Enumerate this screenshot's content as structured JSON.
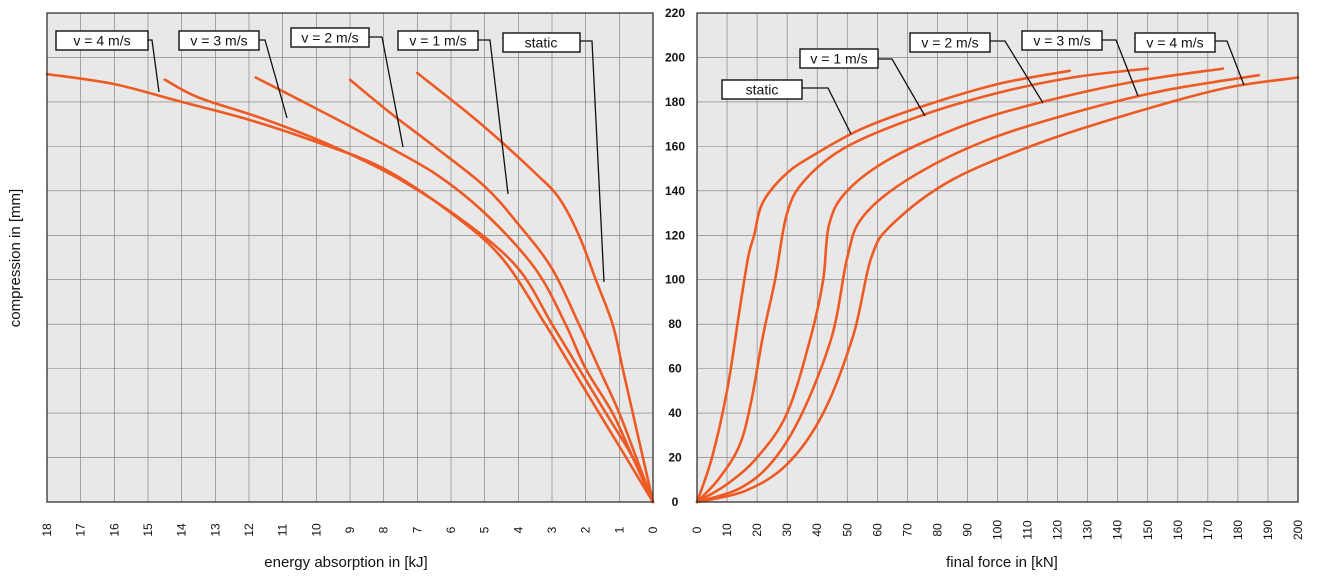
{
  "colors": {
    "curve": "#ee5a24",
    "plot_bg": "#e8e8e8",
    "grid": "#777777"
  },
  "y_axis": {
    "label": "compression in [mm]",
    "ticks": [
      "0",
      "20",
      "40",
      "60",
      "80",
      "100",
      "120",
      "140",
      "160",
      "180",
      "200",
      "220"
    ]
  },
  "chart_data": [
    {
      "type": "line",
      "title": "",
      "xlabel": "energy absorption in [kJ]",
      "ylabel": "compression in [mm]",
      "xlim": [
        18,
        0
      ],
      "ylim": [
        0,
        220
      ],
      "x_reversed": true,
      "grid": true,
      "xticks": [
        "18",
        "17",
        "16",
        "15",
        "14",
        "13",
        "12",
        "11",
        "10",
        "9",
        "8",
        "7",
        "6",
        "5",
        "4",
        "3",
        "2",
        "1",
        "0"
      ],
      "series": [
        {
          "name": "v = 4 m/s",
          "points": [
            [
              0,
              0
            ],
            [
              0.8,
              20
            ],
            [
              1.6,
              40
            ],
            [
              2.4,
              60
            ],
            [
              3.2,
              80
            ],
            [
              4.5,
              110
            ],
            [
              6,
              130
            ],
            [
              8,
              150
            ],
            [
              10,
              162
            ],
            [
              12,
              172
            ],
            [
              14,
              180
            ],
            [
              16,
              188
            ],
            [
              18,
              192.5
            ]
          ],
          "label_point": [
            14.8,
            185
          ]
        },
        {
          "name": "v = 3 m/s",
          "points": [
            [
              0,
              0
            ],
            [
              0.6,
              20
            ],
            [
              1.4,
              40
            ],
            [
              2.2,
              60
            ],
            [
              3,
              80
            ],
            [
              4,
              105
            ],
            [
              5.5,
              125
            ],
            [
              7.5,
              145
            ],
            [
              9.5,
              160
            ],
            [
              11.5,
              172
            ],
            [
              13.5,
              182
            ],
            [
              14.5,
              190
            ]
          ],
          "label_point": [
            11,
            171
          ]
        },
        {
          "name": "v = 2 m/s",
          "points": [
            [
              0,
              0
            ],
            [
              0.6,
              20
            ],
            [
              1.2,
              40
            ],
            [
              2,
              60
            ],
            [
              2.6,
              80
            ],
            [
              3.5,
              105
            ],
            [
              5,
              130
            ],
            [
              6.5,
              148
            ],
            [
              8.5,
              165
            ],
            [
              10,
              177
            ],
            [
              11.8,
              191
            ]
          ],
          "label_point": [
            7.5,
            159
          ]
        },
        {
          "name": "v = 1 m/s",
          "points": [
            [
              0,
              0
            ],
            [
              0.5,
              20
            ],
            [
              1,
              40
            ],
            [
              1.6,
              60
            ],
            [
              2.2,
              80
            ],
            [
              3,
              105
            ],
            [
              4,
              125
            ],
            [
              5,
              142
            ],
            [
              6.5,
              160
            ],
            [
              7.8,
              175
            ],
            [
              9,
              190
            ]
          ],
          "label_point": [
            4.4,
            138
          ]
        },
        {
          "name": "static",
          "points": [
            [
              0,
              0
            ],
            [
              0.3,
              20
            ],
            [
              0.6,
              40
            ],
            [
              0.9,
              60
            ],
            [
              1.2,
              80
            ],
            [
              1.7,
              100
            ],
            [
              2.2,
              120
            ],
            [
              2.8,
              137
            ],
            [
              3.5,
              148
            ],
            [
              4.5,
              162
            ],
            [
              5.5,
              175
            ],
            [
              7,
              193
            ]
          ],
          "label_point": [
            1.5,
            99
          ]
        }
      ],
      "labels": [
        "v = 4 m/s",
        "v = 3 m/s",
        "v = 2 m/s",
        "v = 1 m/s",
        "static"
      ]
    },
    {
      "type": "line",
      "title": "",
      "xlabel": "final force in [kN]",
      "ylabel": "compression in [mm]",
      "xlim": [
        0,
        200
      ],
      "ylim": [
        0,
        220
      ],
      "grid": true,
      "xticks": [
        "0",
        "10",
        "20",
        "30",
        "40",
        "50",
        "60",
        "70",
        "80",
        "90",
        "100",
        "110",
        "120",
        "130",
        "140",
        "150",
        "160",
        "170",
        "180",
        "190",
        "200"
      ],
      "series": [
        {
          "name": "static",
          "points": [
            [
              0,
              0
            ],
            [
              5,
              20
            ],
            [
              10,
              50
            ],
            [
              14,
              85
            ],
            [
              17,
              110
            ],
            [
              19,
              120
            ],
            [
              22,
              135
            ],
            [
              30,
              148
            ],
            [
              40,
              157
            ],
            [
              55,
              168
            ],
            [
              75,
              178
            ],
            [
              100,
              188
            ],
            [
              124,
              194
            ]
          ],
          "label_point": [
            51,
            166
          ]
        },
        {
          "name": "v = 1 m/s",
          "points": [
            [
              0,
              0
            ],
            [
              7,
              10
            ],
            [
              14,
              25
            ],
            [
              18,
              45
            ],
            [
              22,
              75
            ],
            [
              26,
              100
            ],
            [
              30,
              130
            ],
            [
              36,
              145
            ],
            [
              50,
              160
            ],
            [
              75,
              174
            ],
            [
              100,
              184
            ],
            [
              125,
              191
            ],
            [
              150,
              195
            ]
          ],
          "label_point": [
            76,
            172
          ]
        },
        {
          "name": "v = 2 m/s",
          "points": [
            [
              0,
              0
            ],
            [
              10,
              8
            ],
            [
              20,
              20
            ],
            [
              30,
              40
            ],
            [
              38,
              75
            ],
            [
              42,
              100
            ],
            [
              44,
              125
            ],
            [
              50,
              140
            ],
            [
              65,
              155
            ],
            [
              90,
              170
            ],
            [
              115,
              180
            ],
            [
              145,
              189
            ],
            [
              175,
              195
            ]
          ],
          "label_point": [
            116,
            178
          ]
        },
        {
          "name": "v = 3 m/s",
          "points": [
            [
              0,
              0
            ],
            [
              14,
              6
            ],
            [
              25,
              18
            ],
            [
              35,
              40
            ],
            [
              45,
              75
            ],
            [
              50,
              110
            ],
            [
              55,
              128
            ],
            [
              70,
              145
            ],
            [
              95,
              162
            ],
            [
              125,
              175
            ],
            [
              155,
              185
            ],
            [
              187,
              192
            ]
          ],
          "label_point": [
            147,
            182
          ]
        },
        {
          "name": "v = 4 m/s",
          "points": [
            [
              0,
              0
            ],
            [
              16,
              5
            ],
            [
              30,
              17
            ],
            [
              42,
              40
            ],
            [
              52,
              75
            ],
            [
              58,
              110
            ],
            [
              65,
              125
            ],
            [
              85,
              145
            ],
            [
              115,
              162
            ],
            [
              145,
              175
            ],
            [
              175,
              186
            ],
            [
              200,
              191
            ]
          ],
          "label_point": [
            182,
            187
          ]
        }
      ],
      "labels": [
        "static",
        "v = 1 m/s",
        "v = 2 m/s",
        "v = 3 m/s",
        "v = 4 m/s"
      ]
    }
  ]
}
